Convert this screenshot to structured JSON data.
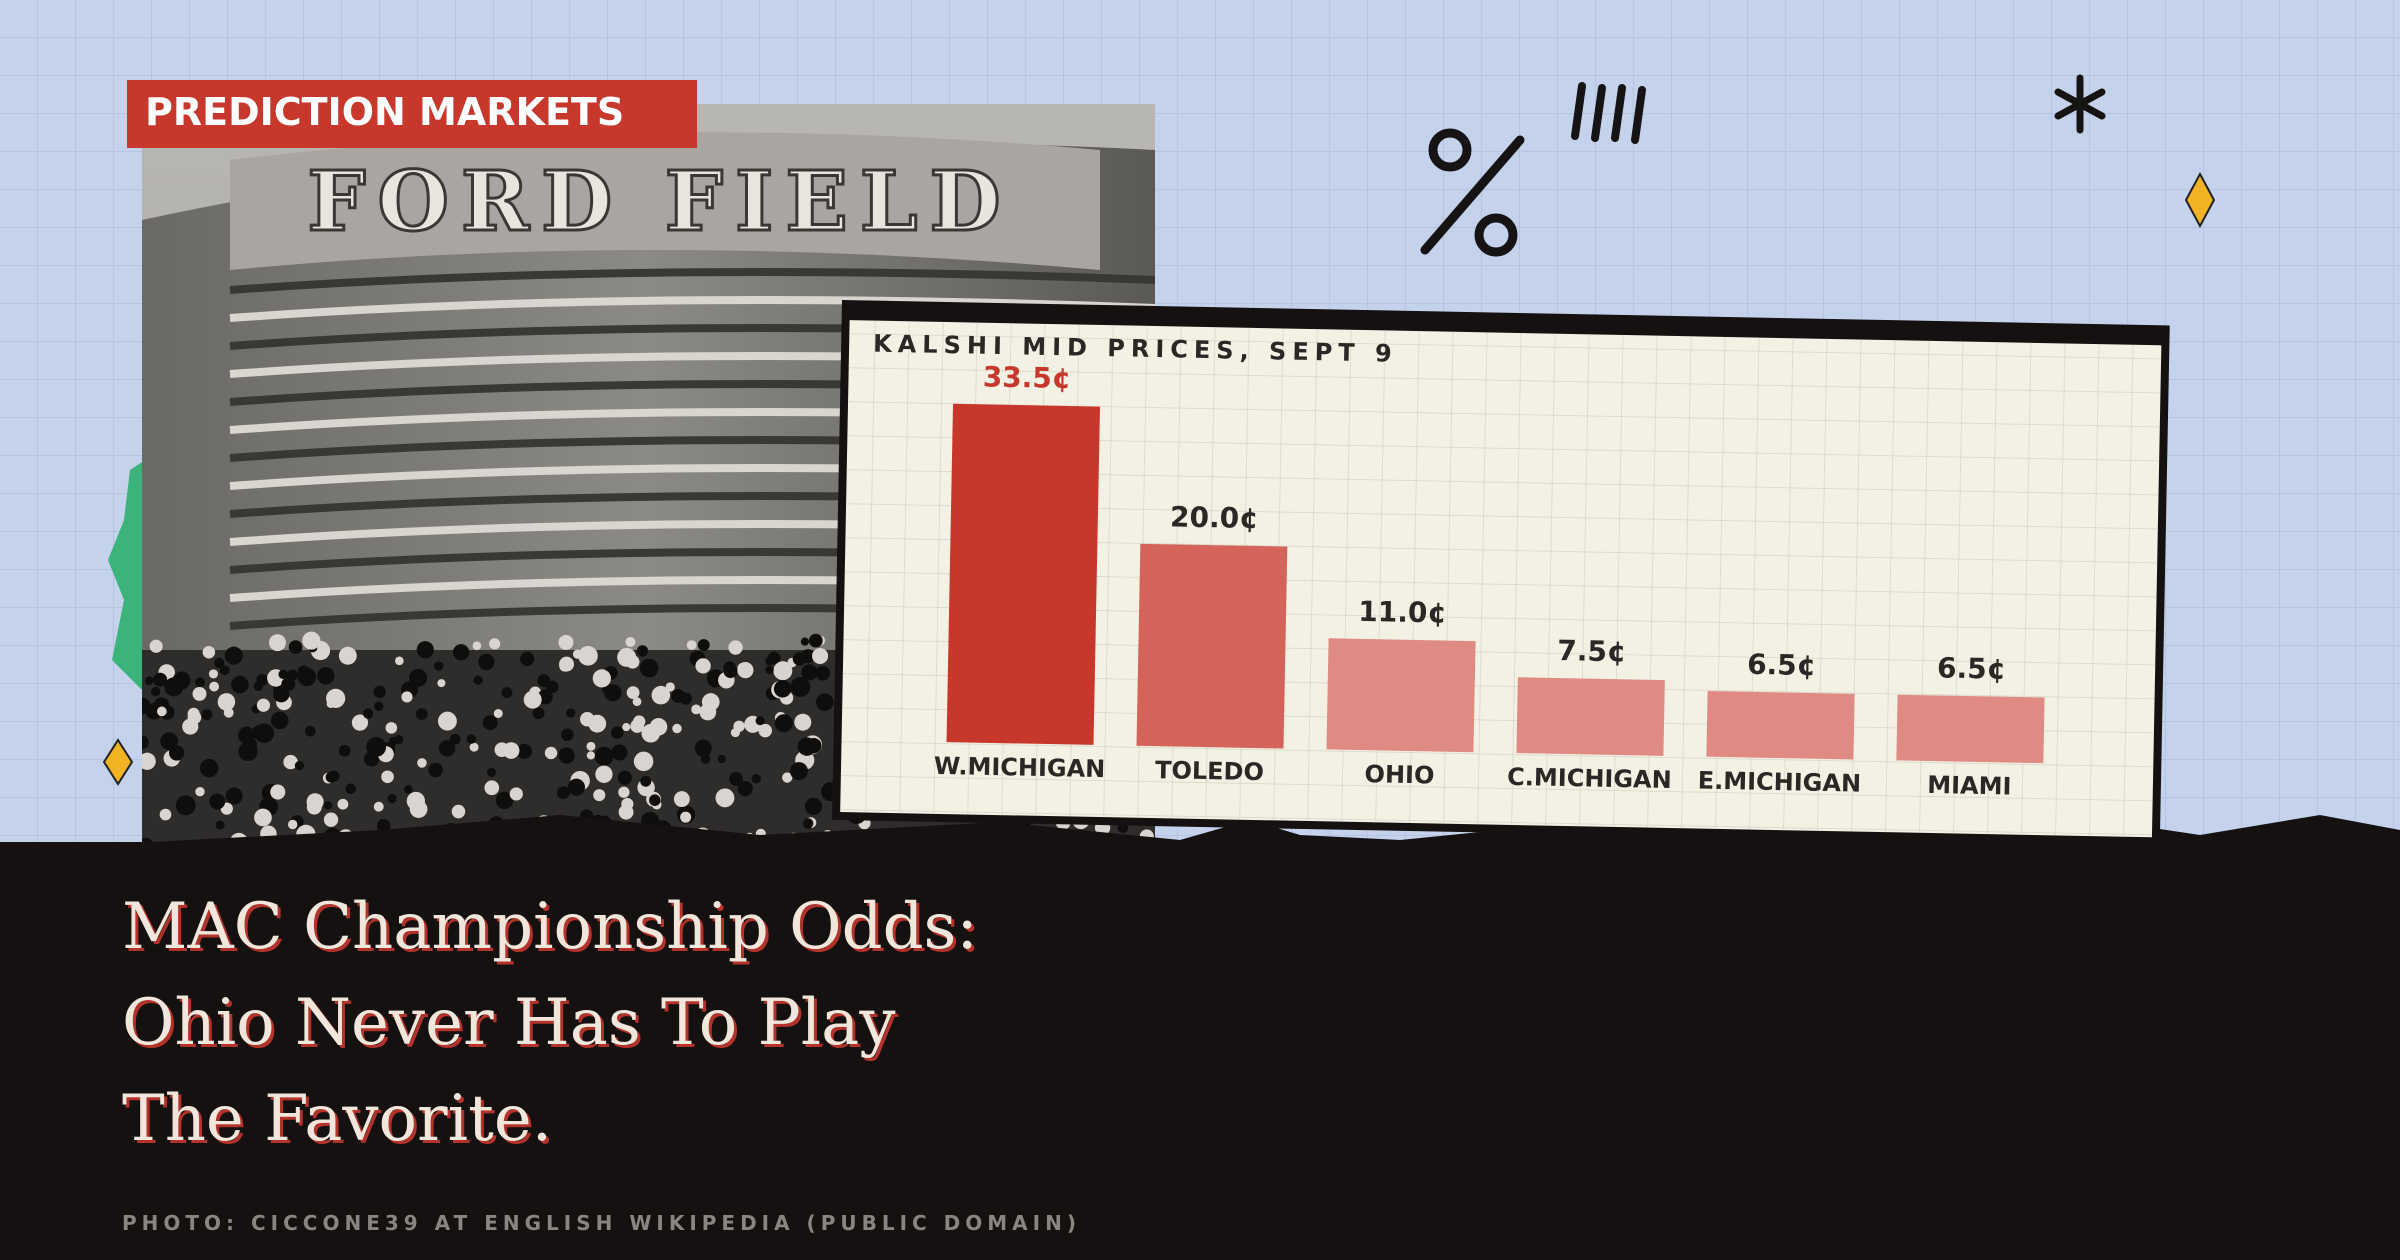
{
  "tag": "PREDICTION MARKETS",
  "photo_sign": "FORD FIELD",
  "headline": [
    "MAC Championship Odds:",
    "Ohio Never Has To Play",
    "The Favorite."
  ],
  "credit": "PHOTO: CICCONE39 AT ENGLISH WIKIPEDIA (PUBLIC DOMAIN)",
  "chart_data": {
    "type": "bar",
    "title": "KALSHI MID PRICES, SEPT 9",
    "categories": [
      "W.MICHIGAN",
      "TOLEDO",
      "OHIO",
      "C.MICHIGAN",
      "E.MICHIGAN",
      "MIAMI"
    ],
    "values": [
      33.5,
      20.0,
      11.0,
      7.5,
      6.5,
      6.5
    ],
    "value_labels": [
      "33.5¢",
      "20.0¢",
      "11.0¢",
      "7.5¢",
      "6.5¢",
      "6.5¢"
    ],
    "colors": [
      "#c8372b",
      "#d4635a",
      "#df8a83",
      "#df8a83",
      "#df8a83",
      "#df8a83"
    ]
  }
}
